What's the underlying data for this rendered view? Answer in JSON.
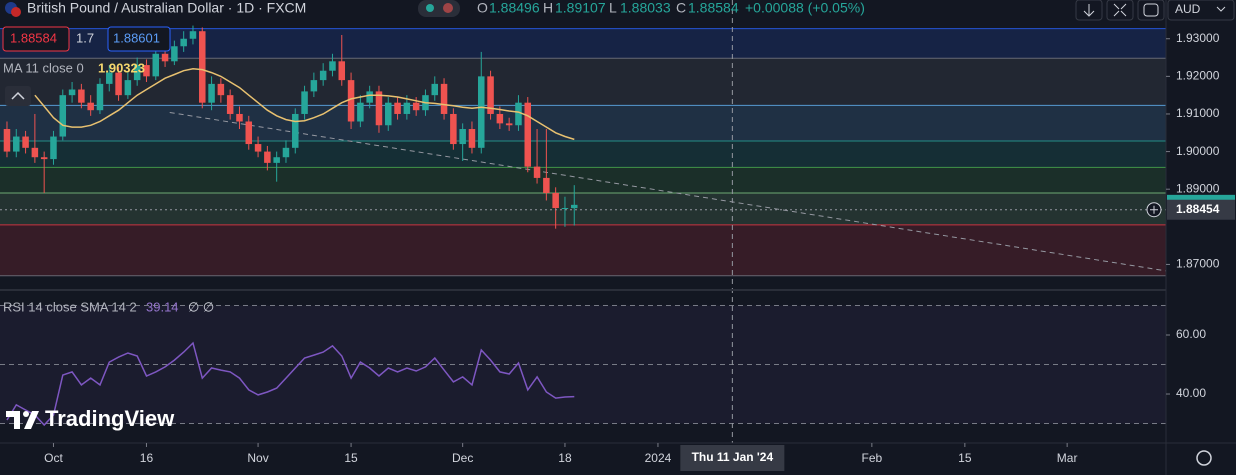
{
  "header": {
    "symbol": "British Pound / Australian Dollar · 1D · FXCM",
    "o_label": "O",
    "h_label": "H",
    "l_label": "L",
    "c_label": "C",
    "change": "+0.00088 (+0.05%)",
    "currency": "AUD"
  },
  "trade": {
    "spread": 1.7,
    "buy": 1.88601
  },
  "logo": "TradingView",
  "chart_data": [
    {
      "type": "candlestick",
      "x": [
        0,
        1,
        2,
        3,
        4,
        5,
        6,
        7,
        8,
        9,
        10,
        11,
        12,
        13,
        14,
        15,
        16,
        17,
        18,
        19,
        20,
        21,
        22,
        23,
        24,
        25,
        26,
        27,
        28,
        29,
        30,
        31,
        32,
        33,
        34,
        35,
        36,
        37,
        38,
        39,
        40,
        41,
        42,
        43,
        44,
        45,
        46,
        47,
        48,
        49,
        50,
        51,
        52,
        53,
        54,
        55,
        56,
        57,
        58,
        59,
        60,
        61
      ],
      "open": [
        1.906,
        1.9,
        1.904,
        1.901,
        1.8985,
        1.898,
        1.904,
        1.915,
        1.9165,
        1.913,
        1.911,
        1.918,
        1.921,
        1.915,
        1.919,
        1.923,
        1.92,
        1.926,
        1.924,
        1.928,
        1.93,
        1.932,
        1.913,
        1.918,
        1.915,
        1.91,
        1.908,
        1.902,
        1.9,
        1.897,
        1.8985,
        1.901,
        1.91,
        1.916,
        1.919,
        1.9215,
        1.924,
        1.919,
        1.908,
        1.913,
        1.916,
        1.907,
        1.913,
        1.91,
        1.913,
        1.911,
        1.915,
        1.918,
        1.91,
        1.902,
        1.906,
        1.901,
        1.92,
        1.91,
        1.9075,
        1.907,
        1.913,
        1.896,
        1.893,
        1.889,
        1.885,
        1.88496
      ],
      "high": [
        1.908,
        1.906,
        1.9055,
        1.91,
        1.9,
        1.9055,
        1.9165,
        1.9185,
        1.918,
        1.915,
        1.9195,
        1.923,
        1.9225,
        1.921,
        1.925,
        1.9245,
        1.9275,
        1.927,
        1.9295,
        1.932,
        1.9335,
        1.933,
        1.92,
        1.9195,
        1.9165,
        1.912,
        1.9095,
        1.904,
        1.9015,
        1.9,
        1.903,
        1.9115,
        1.9175,
        1.921,
        1.9235,
        1.926,
        1.931,
        1.921,
        1.915,
        1.9175,
        1.9175,
        1.9145,
        1.9145,
        1.915,
        1.9145,
        1.9165,
        1.92,
        1.9195,
        1.9115,
        1.9075,
        1.908,
        1.9265,
        1.9215,
        1.912,
        1.909,
        1.915,
        1.9145,
        1.906,
        1.906,
        1.8905,
        1.888,
        1.89107
      ],
      "low": [
        1.8985,
        1.8985,
        1.8995,
        1.897,
        1.889,
        1.8965,
        1.903,
        1.913,
        1.9115,
        1.9095,
        1.91,
        1.916,
        1.9135,
        1.914,
        1.9175,
        1.9185,
        1.919,
        1.9225,
        1.923,
        1.9265,
        1.9285,
        1.9115,
        1.911,
        1.913,
        1.9085,
        1.906,
        1.9005,
        1.8985,
        1.895,
        1.892,
        1.897,
        1.8995,
        1.9085,
        1.9145,
        1.9175,
        1.92,
        1.9175,
        1.906,
        1.9065,
        1.9115,
        1.905,
        1.9055,
        1.9085,
        1.9085,
        1.9095,
        1.9095,
        1.9135,
        1.9085,
        1.9005,
        1.8975,
        1.8995,
        1.8995,
        1.9085,
        1.906,
        1.9055,
        1.9055,
        1.8945,
        1.8915,
        1.887,
        1.8795,
        1.88,
        1.88033
      ],
      "close": [
        1.9,
        1.904,
        1.901,
        1.8985,
        1.898,
        1.904,
        1.915,
        1.9165,
        1.913,
        1.911,
        1.918,
        1.921,
        1.915,
        1.919,
        1.923,
        1.92,
        1.926,
        1.924,
        1.928,
        1.93,
        1.932,
        1.913,
        1.918,
        1.915,
        1.91,
        1.908,
        1.902,
        1.9,
        1.897,
        1.8985,
        1.901,
        1.91,
        1.916,
        1.919,
        1.9215,
        1.924,
        1.919,
        1.908,
        1.913,
        1.916,
        1.907,
        1.913,
        1.91,
        1.913,
        1.911,
        1.915,
        1.918,
        1.91,
        1.902,
        1.906,
        1.901,
        1.92,
        1.91,
        1.9075,
        1.907,
        1.913,
        1.896,
        1.893,
        1.889,
        1.885,
        1.885,
        1.88584
      ],
      "up_color": "#26a69a",
      "down_color": "#ef5350",
      "series": [
        {
          "name": "MA 11 close 0",
          "color": "#e8c170",
          "values": [
            null,
            null,
            null,
            1.915,
            1.912,
            1.909,
            1.907,
            1.9065,
            1.9065,
            1.907,
            1.908,
            1.9095,
            1.911,
            1.913,
            1.915,
            1.9165,
            1.918,
            1.9195,
            1.9205,
            1.9215,
            1.922,
            1.9218,
            1.921,
            1.92,
            1.9185,
            1.917,
            1.915,
            1.913,
            1.911,
            1.9095,
            1.9085,
            1.908,
            1.9082,
            1.909,
            1.91,
            1.9115,
            1.913,
            1.914,
            1.9145,
            1.915,
            1.915,
            1.9148,
            1.9145,
            1.914,
            1.9135,
            1.913,
            1.9128,
            1.9125,
            1.9122,
            1.9118,
            1.9115,
            1.9118,
            1.9115,
            1.9112,
            1.9108,
            1.9105,
            1.9095,
            1.908,
            1.9065,
            1.905,
            1.904,
            1.90323
          ]
        }
      ],
      "xlim": [
        -0.75,
        124.63
      ],
      "xticks": [
        {
          "value": 5,
          "label": "Oct"
        },
        {
          "value": 15,
          "label": "16"
        },
        {
          "value": 27,
          "label": "Nov"
        },
        {
          "value": 37,
          "label": "15"
        },
        {
          "value": 49,
          "label": "Dec"
        },
        {
          "value": 60,
          "label": "18"
        },
        {
          "value": 70,
          "label": "2024"
        },
        {
          "value": 93,
          "label": "Feb"
        },
        {
          "value": 103,
          "label": "15"
        },
        {
          "value": 114,
          "label": "Mar"
        }
      ],
      "ylim": [
        1.8632,
        1.9403
      ],
      "yticks": [
        {
          "value": 1.87,
          "label": "1.87000"
        },
        {
          "value": 1.89,
          "label": "1.89000"
        },
        {
          "value": 1.9,
          "label": "1.90000"
        },
        {
          "value": 1.91,
          "label": "1.91000"
        },
        {
          "value": 1.92,
          "label": "1.92000"
        },
        {
          "value": 1.93,
          "label": "1.93000"
        }
      ],
      "levels": [
        {
          "value": 1.9327,
          "color": "#2962ff"
        },
        {
          "value": 1.9248,
          "color": "#787b86"
        },
        {
          "value": 1.9123,
          "color": "#64b5f6"
        },
        {
          "value": 1.9028,
          "color": "#26a69a"
        },
        {
          "value": 1.8958,
          "color": "#4caf50"
        },
        {
          "value": 1.889,
          "color": "#81c784"
        },
        {
          "value": 1.8805,
          "color": "#f23645"
        },
        {
          "value": 1.867,
          "color": "#787b86"
        }
      ],
      "trendline": {
        "x": [
          17.5,
          124.6
        ],
        "y": [
          1.9104,
          1.8683
        ]
      },
      "crosshair": {
        "x": 78,
        "x_label": "Thu 11 Jan '24",
        "y": 1.88454
      }
    },
    {
      "type": "line",
      "x": [
        0,
        1,
        2,
        3,
        4,
        5,
        6,
        7,
        8,
        9,
        10,
        11,
        12,
        13,
        14,
        15,
        16,
        17,
        18,
        19,
        20,
        21,
        22,
        23,
        24,
        25,
        26,
        27,
        28,
        29,
        30,
        31,
        32,
        33,
        34,
        35,
        36,
        37,
        38,
        39,
        40,
        41,
        42,
        43,
        44,
        45,
        46,
        47,
        48,
        49,
        50,
        51,
        52,
        53,
        54,
        55,
        56,
        57,
        58,
        59,
        60,
        61
      ],
      "series": [
        {
          "name": "RSI 14 close SMA 14 2",
          "color": "#7e57c2",
          "values": [
            31.2,
            36.3,
            34.6,
            32.9,
            29.5,
            32.9,
            46.4,
            47.5,
            43.1,
            45.4,
            43.1,
            50.8,
            52.5,
            53.9,
            52.9,
            46.1,
            47.5,
            49.2,
            51.5,
            54.2,
            57.3,
            45.4,
            48.8,
            48.1,
            47.5,
            45.4,
            41.4,
            39.7,
            40.7,
            42,
            45.4,
            48.8,
            52.2,
            53.2,
            54.2,
            56.3,
            52.9,
            45.4,
            50.8,
            48.8,
            46.1,
            48.8,
            47.5,
            48.8,
            47.8,
            49.2,
            52.2,
            48.1,
            44.1,
            45.8,
            43.1,
            54.9,
            51.5,
            47.5,
            46.8,
            50.5,
            41.4,
            45.8,
            40.7,
            38.6,
            39,
            39.14
          ]
        }
      ],
      "extra_label": "∅ ∅",
      "xlim": [
        -0.75,
        124.63
      ],
      "ylim": [
        23.4,
        75.25
      ],
      "yticks": [
        {
          "value": 40,
          "label": "40.00"
        },
        {
          "value": 60,
          "label": "60.00"
        }
      ],
      "levels": [
        70,
        50,
        30
      ]
    }
  ]
}
